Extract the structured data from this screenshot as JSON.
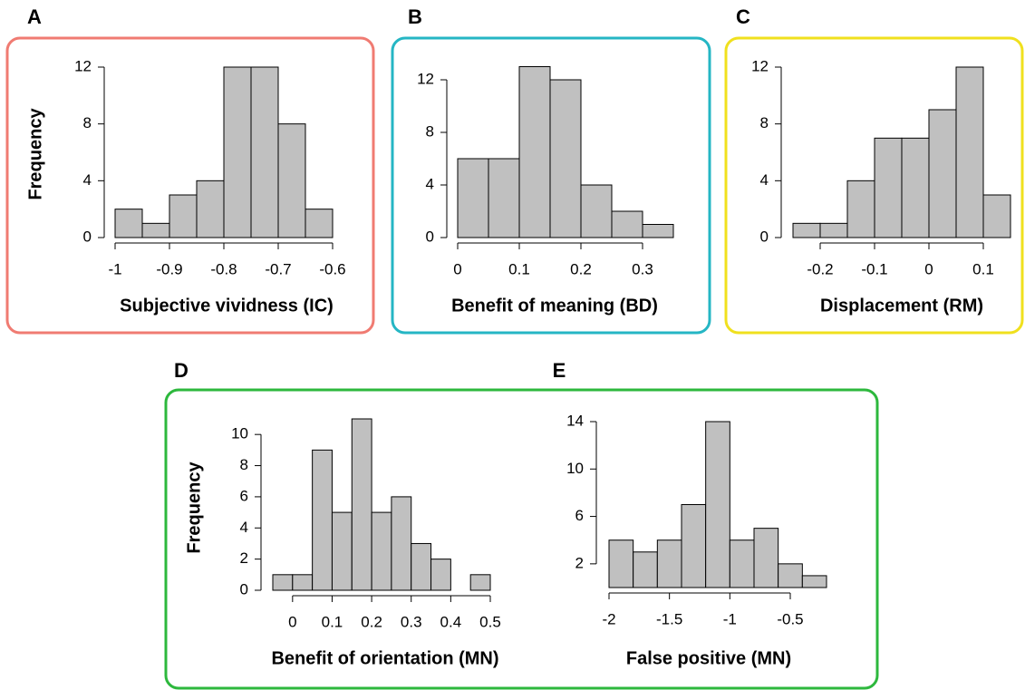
{
  "chart_data": [
    {
      "type": "histogram",
      "label": "A",
      "xlabel": "Subjective vividness (IC)",
      "ylabel": "Frequency",
      "bins": [
        -1,
        -0.95,
        -0.9,
        -0.85,
        -0.8,
        -0.75,
        -0.7,
        -0.65,
        -0.6
      ],
      "counts": [
        2,
        1,
        3,
        4,
        12,
        12,
        8,
        2
      ],
      "color": "#c0c0c0",
      "xlim": [
        -1,
        -0.6
      ],
      "ylim": [
        0,
        12
      ],
      "xticks": [
        -1,
        -0.9,
        -0.8,
        -0.7,
        -0.6
      ],
      "yticks": [
        0,
        4,
        8,
        12
      ]
    },
    {
      "type": "histogram",
      "label": "B",
      "xlabel": "Benefit of meaning (BD)",
      "bins": [
        0,
        0.05,
        0.1,
        0.15,
        0.2,
        0.25,
        0.3,
        0.35
      ],
      "counts": [
        6,
        6,
        13,
        12,
        4,
        2,
        1
      ],
      "color": "#c0c0c0",
      "xlim": [
        0,
        0.35
      ],
      "ylim": [
        0,
        13
      ],
      "xticks": [
        0,
        0.1,
        0.2,
        0.3
      ],
      "yticks": [
        0,
        4,
        8,
        12
      ]
    },
    {
      "type": "histogram",
      "label": "C",
      "xlabel": "Displacement (RM)",
      "bins": [
        -0.25,
        -0.2,
        -0.15,
        -0.1,
        -0.05,
        0,
        0.05,
        0.1,
        0.15
      ],
      "counts": [
        1,
        1,
        4,
        7,
        7,
        9,
        12,
        3
      ],
      "color": "#c0c0c0",
      "xlim": [
        -0.25,
        0.15
      ],
      "ylim": [
        0,
        12
      ],
      "xticks": [
        -0.2,
        -0.1,
        0,
        0.1
      ],
      "yticks": [
        0,
        4,
        8,
        12
      ]
    },
    {
      "type": "histogram",
      "label": "D",
      "xlabel": "Benefit of orientation (MN)",
      "ylabel": "Frequency",
      "bins": [
        -0.05,
        0,
        0.05,
        0.1,
        0.15,
        0.2,
        0.25,
        0.3,
        0.35,
        0.4,
        0.45,
        0.5
      ],
      "counts": [
        1,
        1,
        9,
        5,
        11,
        5,
        6,
        3,
        2,
        0,
        1
      ],
      "color": "#c0c0c0",
      "xlim": [
        -0.05,
        0.5
      ],
      "ylim": [
        0,
        11
      ],
      "xticks": [
        0,
        0.1,
        0.2,
        0.3,
        0.4,
        0.5
      ],
      "yticks": [
        0,
        2,
        4,
        6,
        8,
        10
      ]
    },
    {
      "type": "histogram",
      "label": "E",
      "xlabel": "False positive (MN)",
      "bins": [
        -2,
        -1.8,
        -1.6,
        -1.4,
        -1.2,
        -1,
        -0.8,
        -0.6,
        -0.4,
        -0.2
      ],
      "counts": [
        4,
        3,
        4,
        7,
        14,
        4,
        5,
        2,
        1
      ],
      "color": "#c0c0c0",
      "xlim": [
        -2,
        -0.2
      ],
      "ylim": [
        0,
        14
      ],
      "xticks": [
        -2,
        -1.5,
        -1,
        -0.5
      ],
      "yticks": [
        2,
        6,
        10,
        14
      ]
    }
  ]
}
